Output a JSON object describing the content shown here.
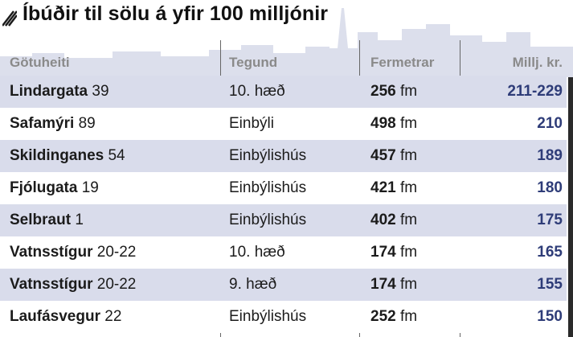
{
  "title": "Íbúðir til sölu á yfir 100 milljónir",
  "headers": {
    "street": "Götuheiti",
    "type": "Tegund",
    "area": "Fermetrar",
    "price": "Millj. kr."
  },
  "rows": [
    {
      "street": "Lindargata",
      "number": "39",
      "type": "10. hæð",
      "area": "256",
      "unit": "fm",
      "price": "211-229"
    },
    {
      "street": "Safamýri",
      "number": "89",
      "type": "Einbýli",
      "area": "498",
      "unit": "fm",
      "price": "210"
    },
    {
      "street": "Skildinganes",
      "number": "54",
      "type": "Einbýlishús",
      "area": "457",
      "unit": "fm",
      "price": "189"
    },
    {
      "street": "Fjólugata",
      "number": "19",
      "type": "Einbýlishús",
      "area": "421",
      "unit": "fm",
      "price": "180"
    },
    {
      "street": "Selbraut",
      "number": "1",
      "type": "Einbýlishús",
      "area": "402",
      "unit": "fm",
      "price": "175"
    },
    {
      "street": "Vatnsstígur",
      "number": "20-22",
      "type": "10. hæð",
      "area": "174",
      "unit": "fm",
      "price": "165"
    },
    {
      "street": "Vatnsstígur",
      "number": "20-22",
      "type": "9. hæð",
      "area": "174",
      "unit": "fm",
      "price": "155"
    },
    {
      "street": "Laufásvegur",
      "number": "22",
      "type": "Einbýlishús",
      "area": "252",
      "unit": "fm",
      "price": "150"
    }
  ],
  "colors": {
    "row_shade": "#d9dceb",
    "price_text": "#2e3c78",
    "header_text": "#8a8a8a"
  }
}
